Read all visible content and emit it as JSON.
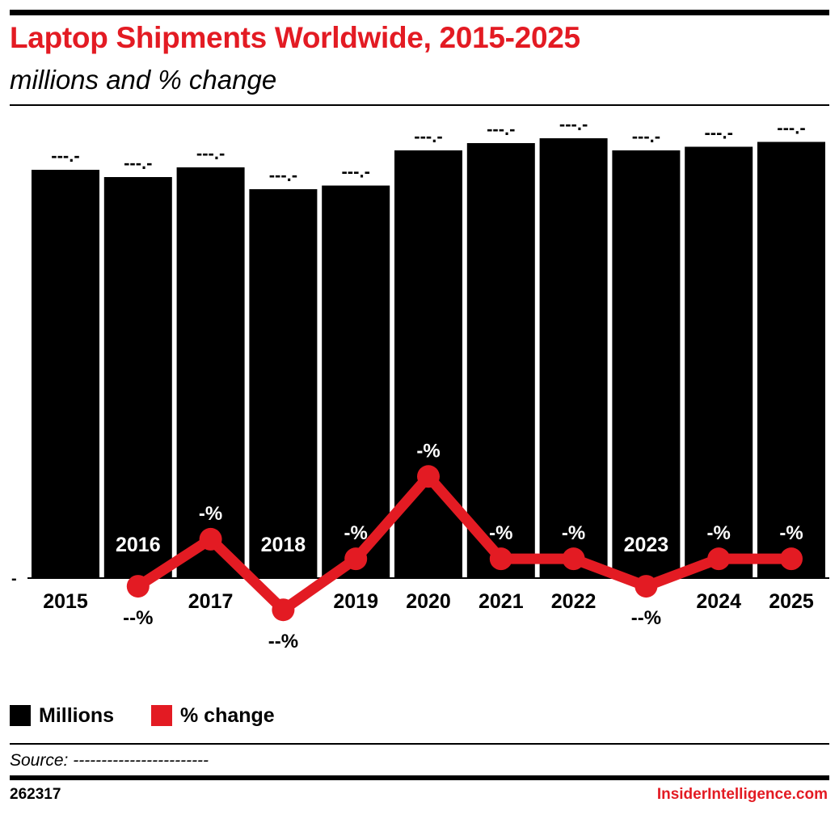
{
  "header": {
    "title": "Laptop Shipments Worldwide, 2015-2025",
    "subtitle": "millions and % change"
  },
  "colors": {
    "title": "#e31b23",
    "bars": "#000000",
    "line": "#e31b23",
    "brand": "#e31b23"
  },
  "chart_data": {
    "type": "bar",
    "categories": [
      "2015",
      "2016",
      "2017",
      "2018",
      "2019",
      "2020",
      "2021",
      "2022",
      "2023",
      "2024",
      "2025"
    ],
    "series": [
      {
        "name": "Millions",
        "type": "bar",
        "values": [
          168,
          165,
          169,
          160,
          161.5,
          176,
          179,
          181,
          176,
          177.5,
          179.5
        ],
        "data_labels": [
          "---.-",
          "---.-",
          "---.-",
          "---.-",
          "---.-",
          "---.-",
          "---.-",
          "---.-",
          "---.-",
          "---.-",
          "---.-"
        ]
      },
      {
        "name": "% change",
        "type": "line",
        "values": [
          null,
          -3,
          3,
          -6,
          0.5,
          11,
          0.5,
          0.5,
          -3,
          0.5,
          0.5
        ],
        "data_labels": [
          "",
          "--%",
          "-%",
          "--%",
          "-%",
          "-%",
          "-%",
          "-%",
          "--%",
          "-%",
          "-%"
        ]
      }
    ],
    "y_axis_label": "-",
    "legend": {
      "placement": "bottom-left",
      "items": [
        {
          "label": "Millions",
          "color": "#000000"
        },
        {
          "label": "% change",
          "color": "#e31b23"
        }
      ]
    },
    "grid": false
  },
  "footer": {
    "source": "Source: ------------------------",
    "chart_id": "262317",
    "brand": "InsiderIntelligence.com"
  }
}
